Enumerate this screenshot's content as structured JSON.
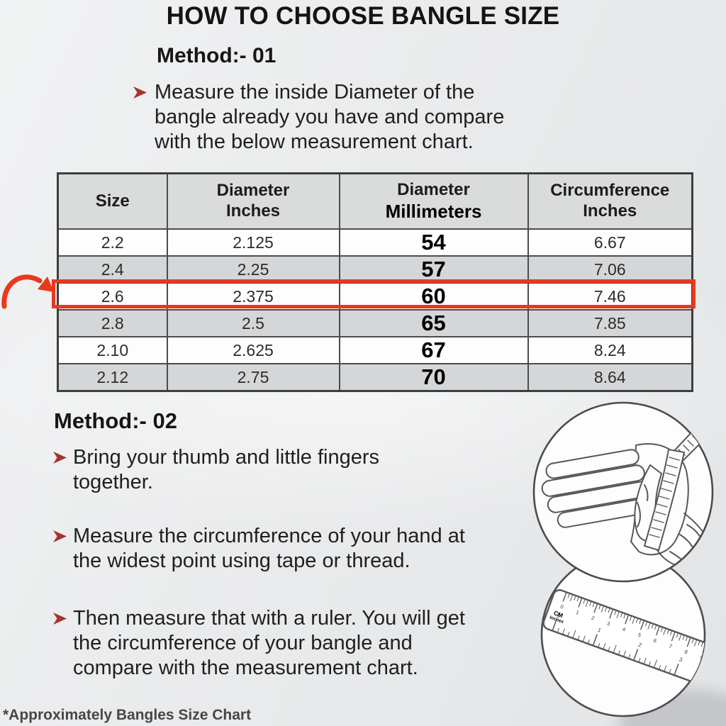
{
  "title": "HOW TO CHOOSE BANGLE SIZE",
  "method1": {
    "heading": "Method:- 01",
    "bullet": "Measure the inside Diameter of the bangle already you have and compare with the below measurement chart."
  },
  "table": {
    "col_headers": [
      {
        "line1": "Size",
        "line2": ""
      },
      {
        "line1": "Diameter",
        "line2": "Inches"
      },
      {
        "line1": "Diameter",
        "line2": "Millimeters"
      },
      {
        "line1": "Circumference",
        "line2": "Inches"
      }
    ],
    "rows": [
      {
        "size": "2.2",
        "diameter_inches": "2.125",
        "diameter_millimeters": "54",
        "circumference_inches": "6.67",
        "highlighted": false
      },
      {
        "size": "2.4",
        "diameter_inches": "2.25",
        "diameter_millimeters": "57",
        "circumference_inches": "7.06",
        "highlighted": false
      },
      {
        "size": "2.6",
        "diameter_inches": "2.375",
        "diameter_millimeters": "60",
        "circumference_inches": "7.46",
        "highlighted": true
      },
      {
        "size": "2.8",
        "diameter_inches": "2.5",
        "diameter_millimeters": "65",
        "circumference_inches": "7.85",
        "highlighted": false
      },
      {
        "size": "2.10",
        "diameter_inches": "2.625",
        "diameter_millimeters": "67",
        "circumference_inches": "8.24",
        "highlighted": false
      },
      {
        "size": "2.12",
        "diameter_inches": "2.75",
        "diameter_millimeters": "70",
        "circumference_inches": "8.64",
        "highlighted": false
      }
    ],
    "highlighted_row_size": "2.6"
  },
  "method2": {
    "heading": "Method:- 02",
    "bullets": [
      "Bring your thumb and little fingers together.",
      "Measure the circumference of your hand at the widest point using tape or thread.",
      "Then measure that with a ruler. You will get the circumference of your bangle and compare with the measurement chart."
    ]
  },
  "illustrations": {
    "hand": {
      "name": "hand-with-measuring-tape"
    },
    "ruler": {
      "cm_label": "CM",
      "inches_label": "Inches",
      "cm_numbers": [
        "0",
        "1",
        "2",
        "3",
        "4",
        "5",
        "6",
        "7",
        "8",
        "9"
      ],
      "inch_numbers": [
        "0",
        "1",
        "2",
        "3"
      ]
    }
  },
  "footnote": "*Approximately Bangles Size Chart",
  "colors": {
    "highlight_red": "#e8391d",
    "bullet_maroon": "#a8322e",
    "table_header_gray": "#dadbdb",
    "table_alt_row_gray": "#d5d6d7"
  }
}
